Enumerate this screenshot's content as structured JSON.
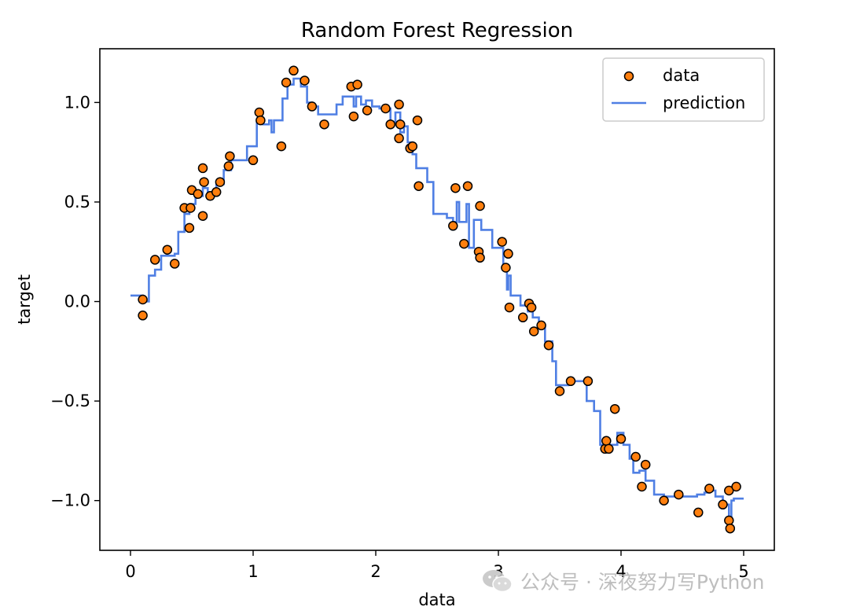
{
  "chart_data": {
    "type": "scatter",
    "title": "Random Forest Regression",
    "xlabel": "data",
    "ylabel": "target",
    "xlim": [
      -0.25,
      5.25
    ],
    "ylim": [
      -1.25,
      1.27
    ],
    "xticks": [
      0,
      1,
      2,
      3,
      4,
      5
    ],
    "xtick_labels": [
      "0",
      "1",
      "2",
      "3",
      "4",
      "5"
    ],
    "yticks": [
      -1.0,
      -0.5,
      0.0,
      0.5,
      1.0
    ],
    "ytick_labels": [
      "−1.0",
      "−0.5",
      "0.0",
      "0.5",
      "1.0"
    ],
    "legend_position": "top-right",
    "grid": false,
    "series": [
      {
        "name": "data",
        "kind": "scatter",
        "color": "#ff7f0e",
        "edgecolor": "#000000",
        "points": [
          [
            0.1,
            0.01
          ],
          [
            0.1,
            -0.07
          ],
          [
            0.2,
            0.21
          ],
          [
            0.3,
            0.26
          ],
          [
            0.36,
            0.19
          ],
          [
            0.44,
            0.47
          ],
          [
            0.48,
            0.37
          ],
          [
            0.49,
            0.47
          ],
          [
            0.5,
            0.56
          ],
          [
            0.55,
            0.54
          ],
          [
            0.59,
            0.43
          ],
          [
            0.59,
            0.67
          ],
          [
            0.6,
            0.6
          ],
          [
            0.65,
            0.53
          ],
          [
            0.7,
            0.55
          ],
          [
            0.73,
            0.6
          ],
          [
            0.8,
            0.68
          ],
          [
            0.81,
            0.73
          ],
          [
            1.0,
            0.71
          ],
          [
            1.05,
            0.95
          ],
          [
            1.06,
            0.91
          ],
          [
            1.23,
            0.78
          ],
          [
            1.27,
            1.1
          ],
          [
            1.33,
            1.16
          ],
          [
            1.42,
            1.11
          ],
          [
            1.48,
            0.98
          ],
          [
            1.58,
            0.89
          ],
          [
            1.8,
            1.08
          ],
          [
            1.82,
            0.93
          ],
          [
            1.85,
            1.09
          ],
          [
            1.93,
            0.96
          ],
          [
            2.08,
            0.97
          ],
          [
            2.12,
            0.89
          ],
          [
            2.19,
            0.99
          ],
          [
            2.19,
            0.82
          ],
          [
            2.2,
            0.89
          ],
          [
            2.28,
            0.77
          ],
          [
            2.3,
            0.78
          ],
          [
            2.34,
            0.91
          ],
          [
            2.35,
            0.58
          ],
          [
            2.63,
            0.38
          ],
          [
            2.65,
            0.57
          ],
          [
            2.72,
            0.29
          ],
          [
            2.75,
            0.58
          ],
          [
            2.84,
            0.25
          ],
          [
            2.85,
            0.22
          ],
          [
            2.85,
            0.48
          ],
          [
            3.03,
            0.3
          ],
          [
            3.06,
            0.17
          ],
          [
            3.08,
            0.24
          ],
          [
            3.09,
            -0.03
          ],
          [
            3.2,
            -0.08
          ],
          [
            3.25,
            -0.01
          ],
          [
            3.27,
            -0.03
          ],
          [
            3.29,
            -0.15
          ],
          [
            3.35,
            -0.12
          ],
          [
            3.41,
            -0.22
          ],
          [
            3.5,
            -0.45
          ],
          [
            3.59,
            -0.4
          ],
          [
            3.73,
            -0.4
          ],
          [
            3.87,
            -0.74
          ],
          [
            3.88,
            -0.7
          ],
          [
            3.9,
            -0.74
          ],
          [
            3.95,
            -0.54
          ],
          [
            4.0,
            -0.69
          ],
          [
            4.12,
            -0.78
          ],
          [
            4.17,
            -0.93
          ],
          [
            4.2,
            -0.82
          ],
          [
            4.35,
            -1.0
          ],
          [
            4.47,
            -0.97
          ],
          [
            4.63,
            -1.06
          ],
          [
            4.72,
            -0.94
          ],
          [
            4.83,
            -1.02
          ],
          [
            4.88,
            -0.95
          ],
          [
            4.88,
            -1.1
          ],
          [
            4.89,
            -1.14
          ],
          [
            4.94,
            -0.93
          ]
        ]
      },
      {
        "name": "prediction",
        "kind": "line",
        "color": "#4f7fe4",
        "points": [
          [
            0.0,
            0.03
          ],
          [
            0.1,
            0.03
          ],
          [
            0.1,
            0.0
          ],
          [
            0.15,
            0.0
          ],
          [
            0.15,
            0.13
          ],
          [
            0.2,
            0.13
          ],
          [
            0.2,
            0.16
          ],
          [
            0.25,
            0.16
          ],
          [
            0.25,
            0.23
          ],
          [
            0.36,
            0.23
          ],
          [
            0.36,
            0.24
          ],
          [
            0.39,
            0.24
          ],
          [
            0.39,
            0.35
          ],
          [
            0.44,
            0.35
          ],
          [
            0.44,
            0.44
          ],
          [
            0.48,
            0.44
          ],
          [
            0.48,
            0.49
          ],
          [
            0.53,
            0.49
          ],
          [
            0.53,
            0.53
          ],
          [
            0.59,
            0.53
          ],
          [
            0.59,
            0.57
          ],
          [
            0.63,
            0.57
          ],
          [
            0.63,
            0.55
          ],
          [
            0.7,
            0.55
          ],
          [
            0.7,
            0.59
          ],
          [
            0.76,
            0.59
          ],
          [
            0.76,
            0.66
          ],
          [
            0.82,
            0.66
          ],
          [
            0.82,
            0.71
          ],
          [
            0.95,
            0.71
          ],
          [
            0.95,
            0.78
          ],
          [
            1.03,
            0.78
          ],
          [
            1.03,
            0.91
          ],
          [
            1.08,
            0.91
          ],
          [
            1.08,
            0.89
          ],
          [
            1.13,
            0.89
          ],
          [
            1.13,
            0.91
          ],
          [
            1.15,
            0.91
          ],
          [
            1.15,
            0.85
          ],
          [
            1.17,
            0.85
          ],
          [
            1.17,
            0.91
          ],
          [
            1.24,
            0.91
          ],
          [
            1.24,
            1.02
          ],
          [
            1.28,
            1.02
          ],
          [
            1.28,
            1.09
          ],
          [
            1.33,
            1.09
          ],
          [
            1.33,
            1.12
          ],
          [
            1.39,
            1.12
          ],
          [
            1.39,
            1.08
          ],
          [
            1.44,
            1.08
          ],
          [
            1.44,
            1.0
          ],
          [
            1.48,
            1.0
          ],
          [
            1.48,
            0.98
          ],
          [
            1.53,
            0.98
          ],
          [
            1.53,
            0.94
          ],
          [
            1.68,
            0.94
          ],
          [
            1.68,
            0.99
          ],
          [
            1.73,
            0.99
          ],
          [
            1.73,
            1.03
          ],
          [
            1.82,
            1.03
          ],
          [
            1.82,
            0.98
          ],
          [
            1.84,
            0.98
          ],
          [
            1.84,
            1.03
          ],
          [
            1.88,
            1.03
          ],
          [
            1.88,
            0.99
          ],
          [
            1.92,
            0.99
          ],
          [
            1.92,
            1.01
          ],
          [
            1.97,
            1.01
          ],
          [
            1.97,
            0.98
          ],
          [
            2.03,
            0.98
          ],
          [
            2.03,
            0.97
          ],
          [
            2.12,
            0.97
          ],
          [
            2.12,
            0.9
          ],
          [
            2.16,
            0.9
          ],
          [
            2.16,
            0.95
          ],
          [
            2.2,
            0.95
          ],
          [
            2.2,
            0.85
          ],
          [
            2.23,
            0.85
          ],
          [
            2.23,
            0.88
          ],
          [
            2.26,
            0.88
          ],
          [
            2.26,
            0.8
          ],
          [
            2.3,
            0.8
          ],
          [
            2.3,
            0.74
          ],
          [
            2.33,
            0.74
          ],
          [
            2.33,
            0.67
          ],
          [
            2.42,
            0.67
          ],
          [
            2.42,
            0.6
          ],
          [
            2.47,
            0.6
          ],
          [
            2.47,
            0.44
          ],
          [
            2.58,
            0.44
          ],
          [
            2.58,
            0.42
          ],
          [
            2.63,
            0.42
          ],
          [
            2.63,
            0.4
          ],
          [
            2.66,
            0.4
          ],
          [
            2.66,
            0.5
          ],
          [
            2.68,
            0.5
          ],
          [
            2.68,
            0.4
          ],
          [
            2.74,
            0.4
          ],
          [
            2.74,
            0.49
          ],
          [
            2.76,
            0.49
          ],
          [
            2.76,
            0.27
          ],
          [
            2.8,
            0.27
          ],
          [
            2.8,
            0.41
          ],
          [
            2.86,
            0.41
          ],
          [
            2.86,
            0.36
          ],
          [
            2.95,
            0.36
          ],
          [
            2.95,
            0.27
          ],
          [
            3.04,
            0.27
          ],
          [
            3.04,
            0.16
          ],
          [
            3.07,
            0.16
          ],
          [
            3.07,
            0.06
          ],
          [
            3.08,
            0.06
          ],
          [
            3.08,
            0.13
          ],
          [
            3.1,
            0.13
          ],
          [
            3.1,
            0.03
          ],
          [
            3.18,
            0.03
          ],
          [
            3.18,
            -0.02
          ],
          [
            3.24,
            -0.02
          ],
          [
            3.24,
            -0.05
          ],
          [
            3.28,
            -0.05
          ],
          [
            3.28,
            -0.08
          ],
          [
            3.33,
            -0.08
          ],
          [
            3.33,
            -0.12
          ],
          [
            3.38,
            -0.12
          ],
          [
            3.38,
            -0.2
          ],
          [
            3.44,
            -0.2
          ],
          [
            3.44,
            -0.3
          ],
          [
            3.47,
            -0.3
          ],
          [
            3.47,
            -0.42
          ],
          [
            3.57,
            -0.42
          ],
          [
            3.57,
            -0.4
          ],
          [
            3.72,
            -0.4
          ],
          [
            3.72,
            -0.5
          ],
          [
            3.78,
            -0.5
          ],
          [
            3.78,
            -0.55
          ],
          [
            3.83,
            -0.55
          ],
          [
            3.83,
            -0.72
          ],
          [
            3.97,
            -0.72
          ],
          [
            3.97,
            -0.66
          ],
          [
            4.02,
            -0.66
          ],
          [
            4.02,
            -0.72
          ],
          [
            4.07,
            -0.72
          ],
          [
            4.07,
            -0.79
          ],
          [
            4.1,
            -0.79
          ],
          [
            4.1,
            -0.86
          ],
          [
            4.15,
            -0.86
          ],
          [
            4.15,
            -0.85
          ],
          [
            4.2,
            -0.85
          ],
          [
            4.2,
            -0.9
          ],
          [
            4.27,
            -0.9
          ],
          [
            4.27,
            -0.97
          ],
          [
            4.35,
            -0.97
          ],
          [
            4.35,
            -0.98
          ],
          [
            4.62,
            -0.98
          ],
          [
            4.62,
            -0.97
          ],
          [
            4.68,
            -0.97
          ],
          [
            4.68,
            -0.96
          ],
          [
            4.72,
            -0.96
          ],
          [
            4.72,
            -0.95
          ],
          [
            4.77,
            -0.95
          ],
          [
            4.77,
            -0.98
          ],
          [
            4.83,
            -0.98
          ],
          [
            4.83,
            -1.02
          ],
          [
            4.88,
            -1.02
          ],
          [
            4.88,
            -1.1
          ],
          [
            4.9,
            -1.1
          ],
          [
            4.9,
            -1.0
          ],
          [
            4.92,
            -1.0
          ],
          [
            4.92,
            -0.99
          ],
          [
            5.0,
            -0.99
          ]
        ]
      }
    ]
  },
  "watermark": {
    "icon": "wechat-icon",
    "text": "公众号 · 深夜努力写Python"
  }
}
